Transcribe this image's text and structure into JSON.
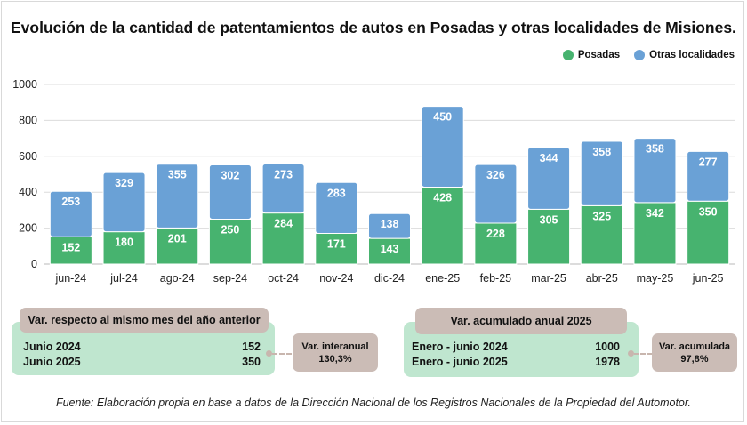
{
  "title": "Evolución de la cantidad de patentamientos de autos en Posadas y otras localidades de Misiones.",
  "colors": {
    "posadas": "#47b36f",
    "otras": "#6aa1d6",
    "summary_green": "#bfe6cf",
    "summary_taupe": "#cbbcb6"
  },
  "chart_data": {
    "type": "bar",
    "stacked": true,
    "title": "Evolución de la cantidad de patentamientos de autos en Posadas y otras localidades de Misiones.",
    "categories": [
      "jun-24",
      "jul-24",
      "ago-24",
      "sep-24",
      "oct-24",
      "nov-24",
      "dic-24",
      "ene-25",
      "feb-25",
      "mar-25",
      "abr-25",
      "may-25",
      "jun-25"
    ],
    "series": [
      {
        "name": "Posadas",
        "values": [
          152,
          180,
          201,
          250,
          284,
          171,
          143,
          428,
          228,
          305,
          325,
          342,
          350
        ]
      },
      {
        "name": "Otras localidades",
        "values": [
          253,
          329,
          355,
          302,
          273,
          283,
          138,
          450,
          326,
          344,
          358,
          358,
          277
        ]
      }
    ],
    "ylim": [
      0,
      1000
    ],
    "yticks": [
      0,
      200,
      400,
      600,
      800,
      1000
    ],
    "grid": true,
    "legend_position": "top-right"
  },
  "summary_left": {
    "header": "Var. respecto al mismo mes del año anterior",
    "rows": [
      {
        "label": "Junio 2024",
        "value": "152"
      },
      {
        "label": "Junio 2025",
        "value": "350"
      }
    ],
    "var_label": "Var. interanual",
    "var_value": "130,3%"
  },
  "summary_right": {
    "header": "Var. acumulado anual 2025",
    "rows": [
      {
        "label": "Enero - junio 2024",
        "value": "1000"
      },
      {
        "label": "Enero - junio 2025",
        "value": "1978"
      }
    ],
    "var_label": "Var. acumulada",
    "var_value": "97,8%"
  },
  "source": "Fuente: Elaboración propia en base a datos de la Dirección Nacional de los Registros Nacionales de la Propiedad del Automotor."
}
